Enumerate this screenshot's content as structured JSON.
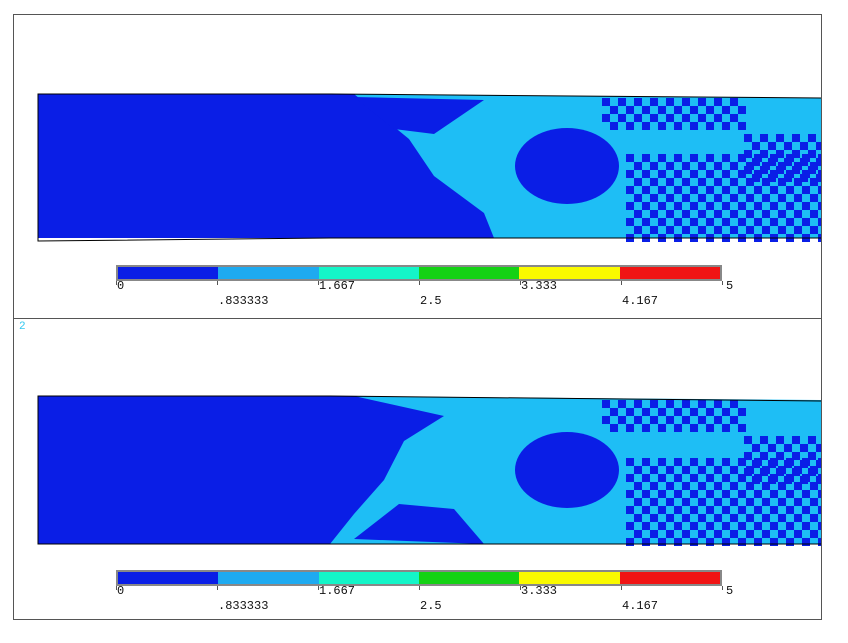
{
  "panels": [
    {
      "id": "1",
      "number_label": ""
    },
    {
      "id": "2",
      "number_label": "2"
    }
  ],
  "legend": {
    "colors": [
      "#0a1ee6",
      "#1eaaf0",
      "#14f5c8",
      "#14d214",
      "#fafa00",
      "#f01414"
    ],
    "top_ticks": [
      "0",
      "1.667",
      "3.333",
      "5"
    ],
    "bottom_ticks": [
      ".833333",
      "2.5",
      "4.167"
    ],
    "range": [
      0,
      5
    ]
  },
  "field_colors": {
    "low": "#0a1ee6",
    "mid": "#1ebef5"
  }
}
